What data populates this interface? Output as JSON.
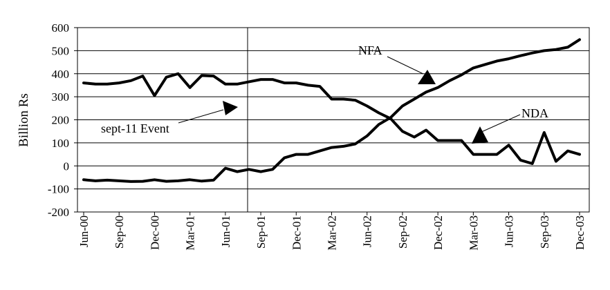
{
  "chart_data": {
    "type": "line",
    "title": "",
    "xlabel": "",
    "ylabel": "Billion Rs",
    "ylim": [
      -200,
      600
    ],
    "yticks": [
      -200,
      -100,
      0,
      100,
      200,
      300,
      400,
      500,
      600
    ],
    "grid": true,
    "legend": "none",
    "x": [
      "Jun-00",
      "Jul-00",
      "Aug-00",
      "Sep-00",
      "Oct-00",
      "Nov-00",
      "Dec-00",
      "Jan-01",
      "Feb-01",
      "Mar-01",
      "Apr-01",
      "May-01",
      "Jun-01",
      "Jul-01",
      "Aug-01",
      "Sep-01",
      "Oct-01",
      "Nov-01",
      "Dec-01",
      "Jan-02",
      "Feb-02",
      "Mar-02",
      "Apr-02",
      "May-02",
      "Jun-02",
      "Jul-02",
      "Aug-02",
      "Sep-02",
      "Oct-02",
      "Nov-02",
      "Dec-02",
      "Jan-03",
      "Feb-03",
      "Mar-03",
      "Apr-03",
      "May-03",
      "Jun-03",
      "Jul-03",
      "Aug-03",
      "Sep-03",
      "Oct-03",
      "Nov-03",
      "Dec-03"
    ],
    "xtick_labels": [
      "Jun-00",
      "Sep-00",
      "Dec-00",
      "Mar-01",
      "Jun-01",
      "Sep-01",
      "Dec-01",
      "Mar-02",
      "Jun-02",
      "Sep-02",
      "Dec-02",
      "Mar-03",
      "Jun-03",
      "Sep-03",
      "Dec-03"
    ],
    "series": [
      {
        "name": "NFA",
        "values": [
          -60,
          -65,
          -62,
          -65,
          -68,
          -67,
          -60,
          -67,
          -65,
          -60,
          -66,
          -62,
          -10,
          -25,
          -15,
          -25,
          -15,
          35,
          50,
          50,
          65,
          80,
          85,
          95,
          130,
          180,
          210,
          260,
          290,
          320,
          340,
          370,
          395,
          425,
          440,
          455,
          465,
          478,
          490,
          500,
          505,
          515,
          548
        ]
      },
      {
        "name": "NDA",
        "values": [
          360,
          355,
          355,
          360,
          370,
          390,
          305,
          385,
          400,
          340,
          392,
          390,
          355,
          355,
          365,
          375,
          375,
          360,
          360,
          350,
          345,
          290,
          290,
          285,
          260,
          230,
          205,
          150,
          125,
          155,
          110,
          110,
          110,
          50,
          50,
          50,
          90,
          25,
          10,
          145,
          20,
          65,
          50
        ]
      }
    ],
    "annotations": [
      {
        "text": "NFA",
        "target": "NFA"
      },
      {
        "text": "NDA",
        "target": "NDA"
      },
      {
        "text": "sept-11 Event",
        "target_x": "Aug-01"
      }
    ]
  }
}
